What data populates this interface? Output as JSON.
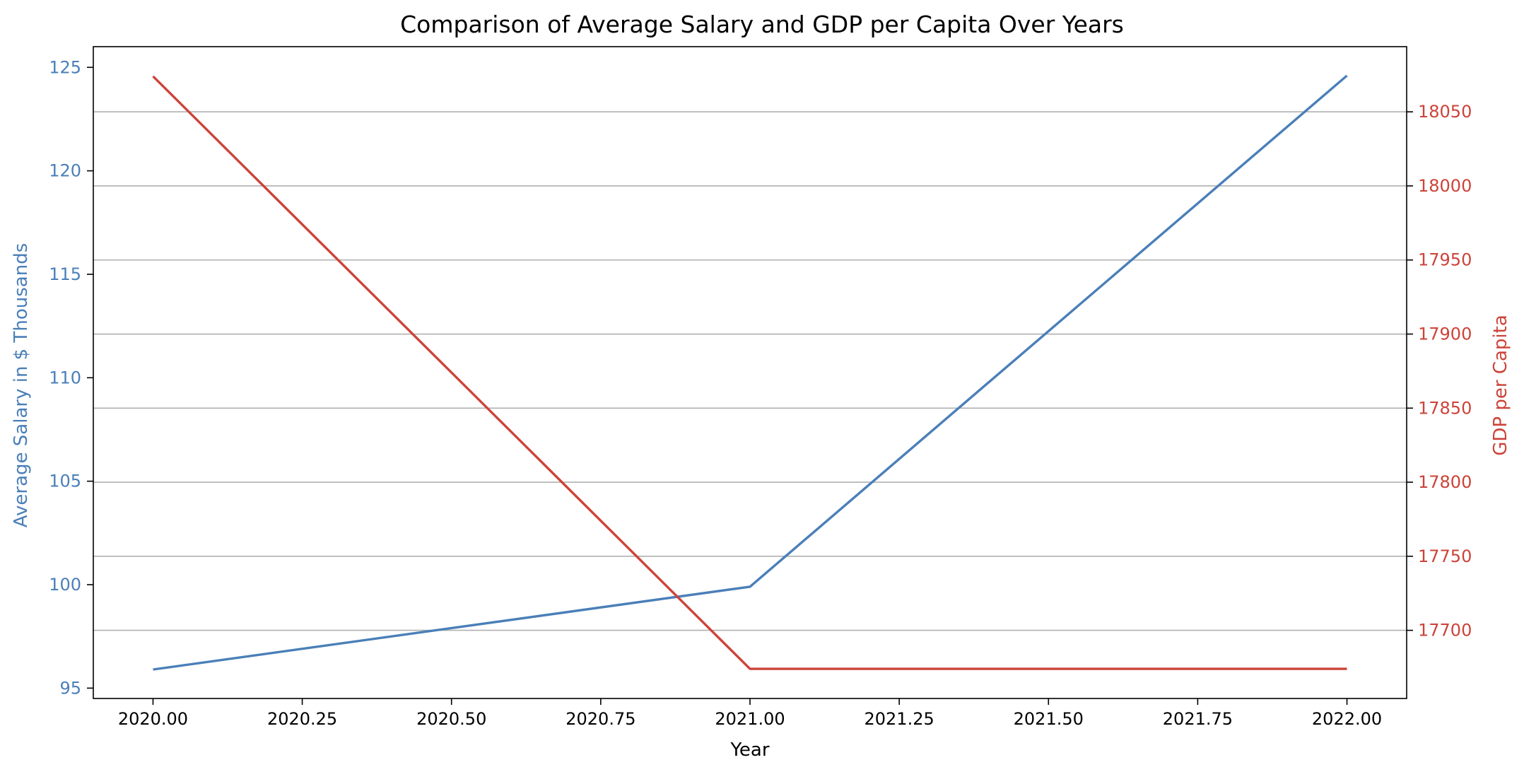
{
  "chart_data": {
    "type": "line",
    "title": "Comparison of Average Salary and GDP per Capita Over Years",
    "xlabel": "Year",
    "x": [
      2020,
      2021,
      2022
    ],
    "x_ticks": [
      2020.0,
      2020.25,
      2020.5,
      2020.75,
      2021.0,
      2021.25,
      2021.5,
      2021.75,
      2022.0
    ],
    "x_tick_labels": [
      "2020.00",
      "2020.25",
      "2020.50",
      "2020.75",
      "2021.00",
      "2021.25",
      "2021.50",
      "2021.75",
      "2022.00"
    ],
    "xlim": [
      2019.9,
      2022.1
    ],
    "series": [
      {
        "axis": "left",
        "values": [
          95.9,
          99.9,
          124.6
        ],
        "color": "#4a7fb8"
      },
      {
        "axis": "right",
        "values": [
          18074,
          17674,
          17674
        ],
        "color": "#cc4339"
      }
    ],
    "left_axis": {
      "label": "Average Salary in $ Thousands",
      "color": "#4a7fb8",
      "ylim": [
        94.5,
        126.0
      ],
      "ticks": [
        95,
        100,
        105,
        110,
        115,
        120,
        125
      ],
      "tick_labels": [
        "95",
        "100",
        "105",
        "110",
        "115",
        "120",
        "125"
      ]
    },
    "right_axis": {
      "label": "GDP per Capita",
      "color": "#cc4339",
      "ylim": [
        17654,
        18094
      ],
      "ticks": [
        17700,
        17750,
        17800,
        17850,
        17900,
        17950,
        18000,
        18050
      ],
      "tick_labels": [
        "17700",
        "17750",
        "17800",
        "17850",
        "17900",
        "17950",
        "18000",
        "18050"
      ]
    },
    "grid": "horizontal, right axis ticks",
    "legend": "none"
  }
}
